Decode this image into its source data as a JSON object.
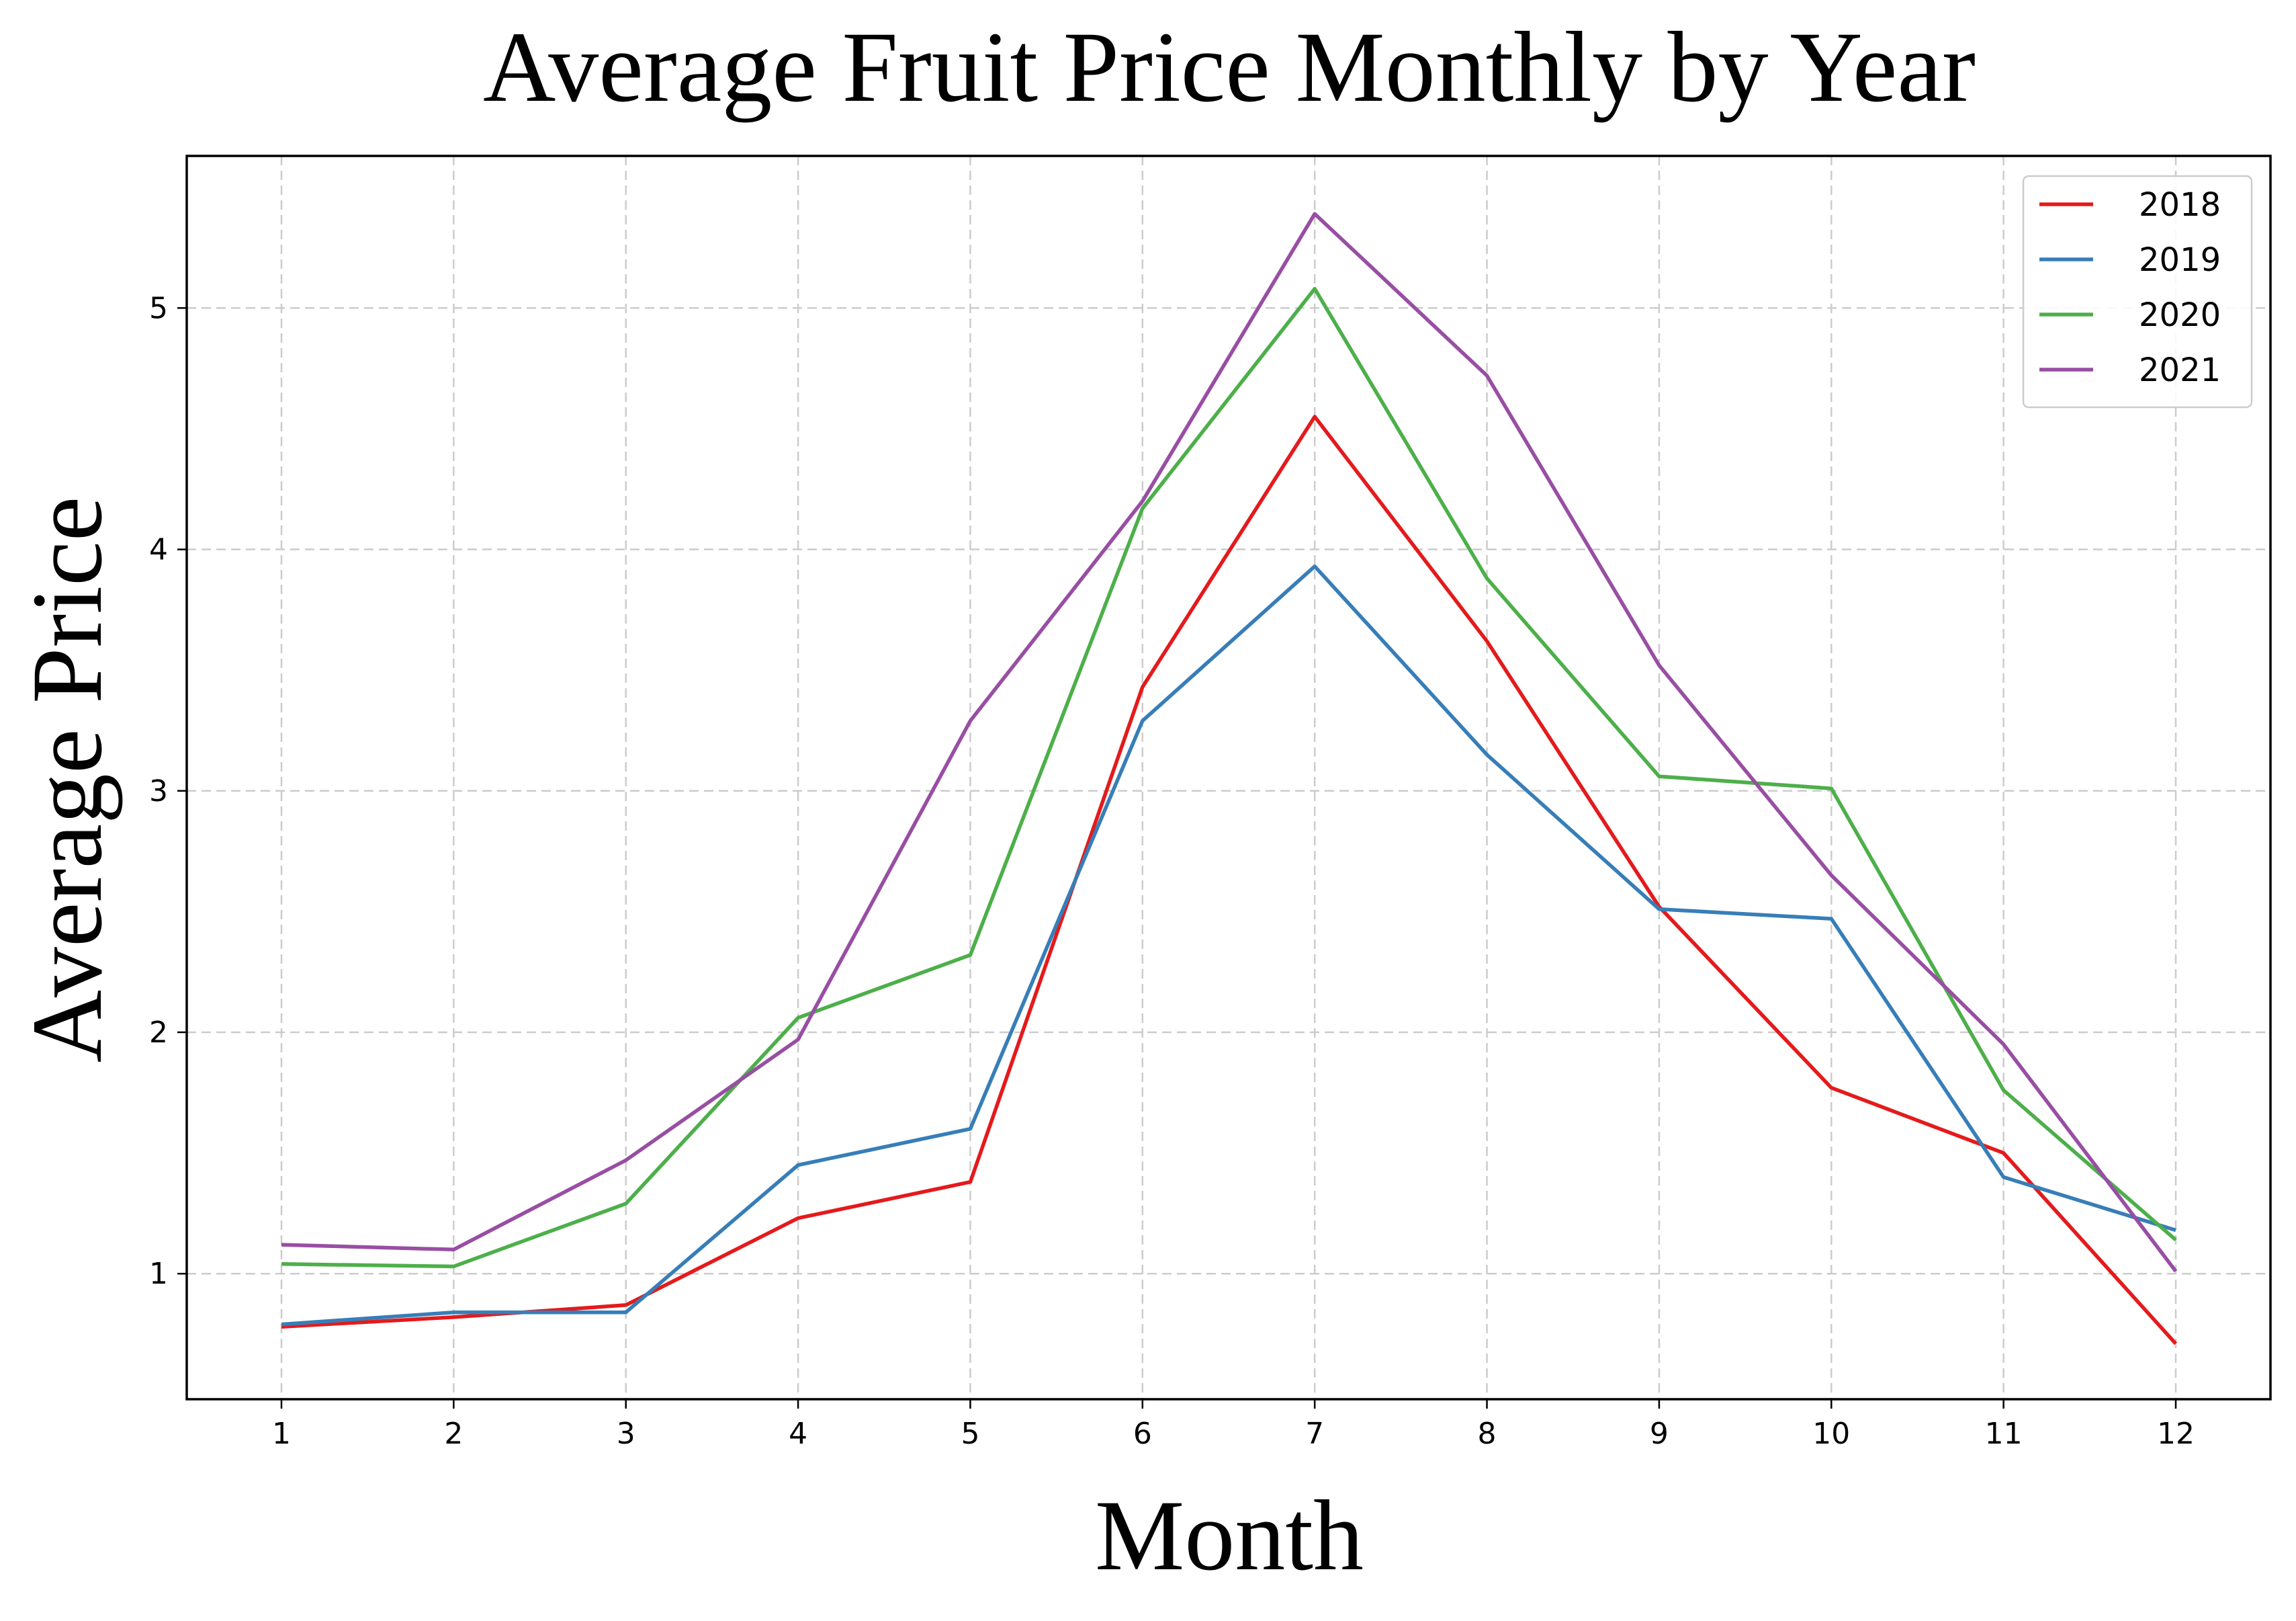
{
  "chart_data": {
    "type": "line",
    "title": "Average Fruit Price Monthly by Year",
    "xlabel": "Month",
    "ylabel": "Average Price",
    "x": [
      1,
      2,
      3,
      4,
      5,
      6,
      7,
      8,
      9,
      10,
      11,
      12
    ],
    "x_ticks": [
      "1",
      "2",
      "3",
      "4",
      "5",
      "6",
      "7",
      "8",
      "9",
      "10",
      "11",
      "12"
    ],
    "y_ticks": [
      "1",
      "2",
      "3",
      "4",
      "5"
    ],
    "xlim": [
      0.45,
      12.55
    ],
    "ylim": [
      0.48,
      5.63
    ],
    "grid": true,
    "legend_position": "top-right",
    "series": [
      {
        "name": "2018",
        "color": "#e41a1c",
        "values": [
          0.78,
          0.82,
          0.87,
          1.23,
          1.38,
          3.43,
          4.55,
          3.62,
          2.52,
          1.77,
          1.5,
          0.71
        ]
      },
      {
        "name": "2019",
        "color": "#377eb8",
        "values": [
          0.79,
          0.84,
          0.84,
          1.45,
          1.6,
          3.29,
          3.93,
          3.15,
          2.51,
          2.47,
          1.4,
          1.18
        ]
      },
      {
        "name": "2020",
        "color": "#4daf4a",
        "values": [
          1.04,
          1.03,
          1.29,
          2.06,
          2.32,
          4.17,
          5.08,
          3.88,
          3.06,
          3.01,
          1.76,
          1.14
        ]
      },
      {
        "name": "2021",
        "color": "#984ea3",
        "values": [
          1.12,
          1.1,
          1.47,
          1.97,
          3.29,
          4.2,
          5.39,
          4.72,
          3.52,
          2.65,
          1.95,
          1.01
        ]
      }
    ]
  }
}
